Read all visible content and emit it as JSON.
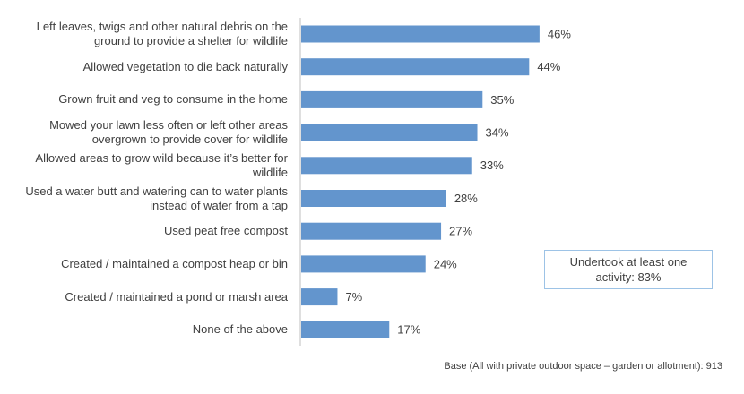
{
  "chart_data": {
    "type": "hbar",
    "categories": [
      "Left leaves, twigs and other natural debris on the ground to provide a shelter for wildlife",
      "Allowed vegetation to die back naturally",
      "Grown fruit and veg to consume in the home",
      "Mowed your lawn less often or left other areas overgrown to provide cover for wildlife",
      "Allowed areas to grow wild because it’s better for wildlife",
      "Used a water butt and watering can to water plants instead of water from a tap",
      "Used peat free compost",
      "Created / maintained a compost heap or bin",
      "Created / maintained a pond or marsh area",
      "None of the above"
    ],
    "values": [
      46,
      44,
      35,
      34,
      33,
      28,
      27,
      24,
      7,
      17
    ],
    "value_labels": [
      "46%",
      "44%",
      "35%",
      "34%",
      "33%",
      "28%",
      "27%",
      "24%",
      "7%",
      "17%"
    ],
    "color": "#6395cd",
    "annotation": "Undertook at least one activity: 83%",
    "footnote": "Base (All with private outdoor space – garden or allotment): 913"
  }
}
